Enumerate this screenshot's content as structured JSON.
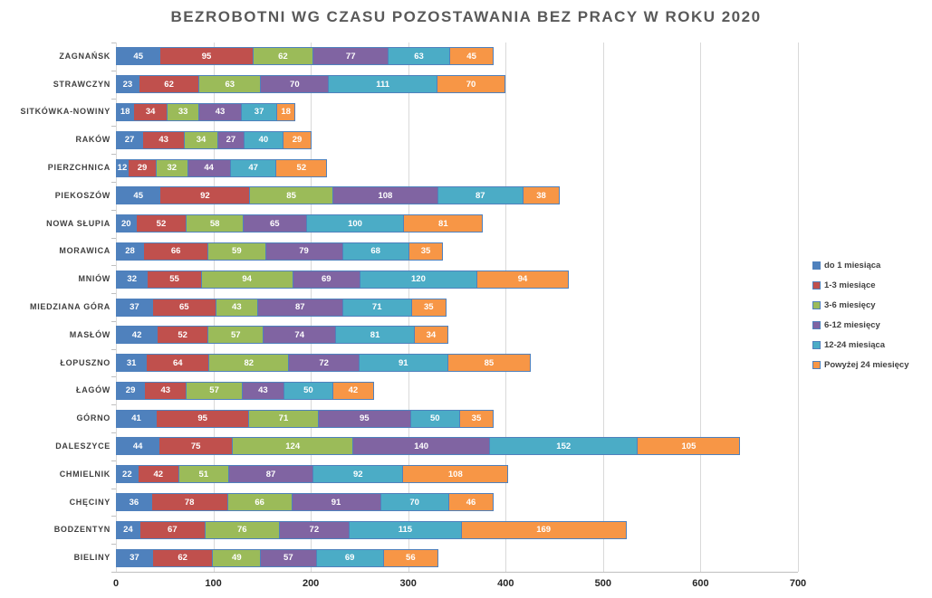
{
  "title": "BEZROBOTNI WG CZASU POZOSTAWANIA BEZ PRACY W ROKU 2020",
  "chart_data": {
    "type": "bar",
    "orientation": "horizontal",
    "stacked": true,
    "title": "BEZROBOTNI WG CZASU POZOSTAWANIA BEZ PRACY W ROKU 2020",
    "xlabel": "",
    "ylabel": "",
    "xlim": [
      0,
      700
    ],
    "x_ticks": [
      "0",
      "100",
      "200",
      "300",
      "400",
      "500",
      "600",
      "700"
    ],
    "grid": true,
    "legend_position": "right",
    "value_labels": "inside-white-bold",
    "categories": [
      "ZAGNAŃSK",
      "STRAWCZYN",
      "SITKÓWKA-NOWINY",
      "RAKÓW",
      "PIERZCHNICA",
      "PIEKOSZÓW",
      "NOWA SŁUPIA",
      "MORAWICA",
      "MNIÓW",
      "MIEDZIANA GÓRA",
      "MASŁÓW",
      "ŁOPUSZNO",
      "ŁAGÓW",
      "GÓRNO",
      "DALESZYCE",
      "CHMIELNIK",
      "CHĘCINY",
      "BODZENTYN",
      "BIELINY"
    ],
    "series": [
      {
        "name": "do 1 miesiąca",
        "color": "#4f81bd",
        "values": [
          45,
          23,
          18,
          27,
          12,
          45,
          20,
          28,
          32,
          37,
          42,
          31,
          29,
          41,
          44,
          22,
          36,
          24,
          37
        ]
      },
      {
        "name": "1-3 miesiące",
        "color": "#c0504d",
        "values": [
          95,
          62,
          34,
          43,
          29,
          92,
          52,
          66,
          55,
          65,
          52,
          64,
          43,
          95,
          75,
          42,
          78,
          67,
          62
        ]
      },
      {
        "name": "3-6 miesięcy",
        "color": "#9bbb59",
        "values": [
          62,
          63,
          33,
          34,
          32,
          85,
          58,
          59,
          94,
          43,
          57,
          82,
          57,
          71,
          124,
          51,
          66,
          76,
          49
        ]
      },
      {
        "name": "6-12 miesięcy",
        "color": "#8064a2",
        "values": [
          77,
          70,
          43,
          27,
          44,
          108,
          65,
          79,
          69,
          87,
          74,
          72,
          43,
          95,
          140,
          87,
          91,
          72,
          57
        ]
      },
      {
        "name": "12-24 miesiąca",
        "color": "#4bacc6",
        "values": [
          63,
          111,
          37,
          40,
          47,
          87,
          100,
          68,
          120,
          71,
          81,
          91,
          50,
          50,
          152,
          92,
          70,
          115,
          69
        ]
      },
      {
        "name": "Powyżej 24 miesięcy",
        "color": "#f79646",
        "values": [
          45,
          70,
          18,
          29,
          52,
          38,
          81,
          35,
          94,
          35,
          34,
          85,
          42,
          35,
          105,
          108,
          46,
          169,
          56
        ]
      }
    ],
    "colors": {
      "segment_border": "#4f81bd",
      "gridline": "#d9d9d9",
      "axis_line": "#bfbfbf",
      "title_text": "#595959",
      "category_text": "#3f3f3f",
      "tick_text": "#262626",
      "legend_text": "#404040",
      "value_label_text": "#ffffff"
    }
  }
}
